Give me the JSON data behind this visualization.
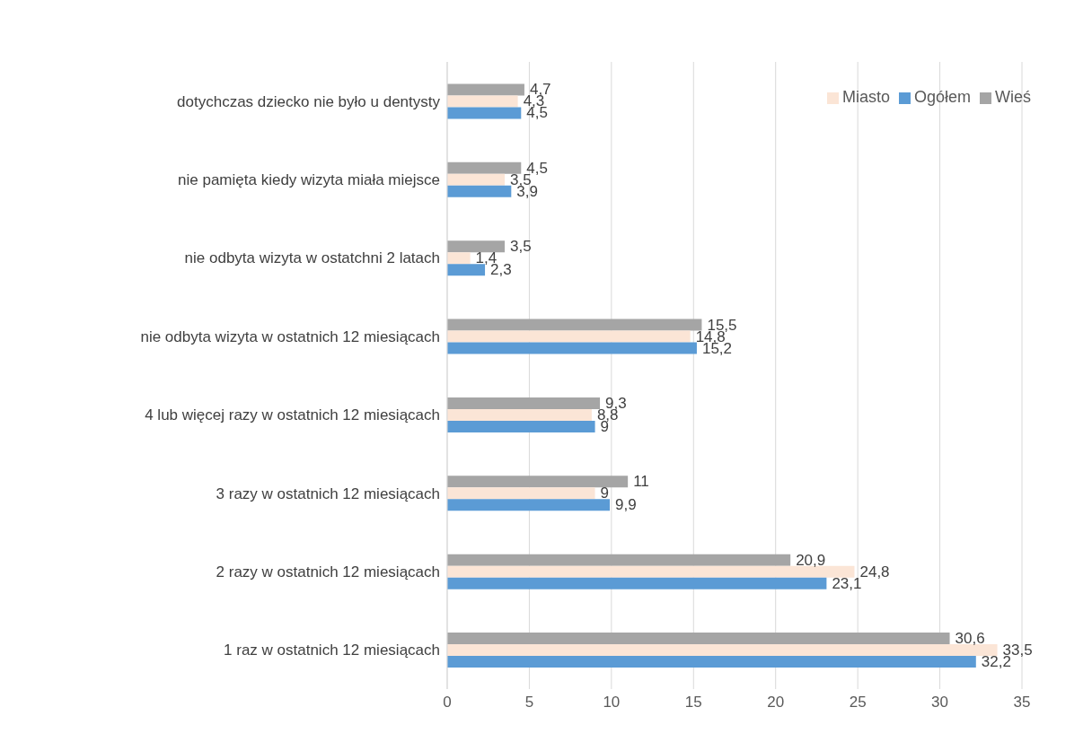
{
  "chart_data": {
    "type": "bar",
    "orientation": "horizontal",
    "categories": [
      "dotychczas dziecko nie było u dentysty",
      "nie pamięta kiedy wizyta miała miejsce",
      "nie odbyta wizyta w ostatchni 2 latach",
      "nie odbyta wizyta w ostatnich 12 miesiącach",
      "4 lub więcej razy w ostatnich 12 miesiącach",
      "3 razy w ostatnich 12 miesiącach",
      "2 razy w ostatnich 12 miesiącach",
      "1 raz w ostatnich 12 miesiącach"
    ],
    "series": [
      {
        "name": "Wieś",
        "color": "#a5a5a5",
        "values": [
          4.7,
          4.5,
          3.5,
          15.5,
          9.3,
          11,
          20.9,
          30.6
        ],
        "value_labels": [
          "4,7",
          "4,5",
          "3,5",
          "15,5",
          "9,3",
          "11",
          "20,9",
          "30,6"
        ]
      },
      {
        "name": "Miasto",
        "color": "#fbe5d6",
        "values": [
          4.3,
          3.5,
          1.4,
          14.8,
          8.8,
          9,
          24.8,
          33.5
        ],
        "value_labels": [
          "4,3",
          "3,5",
          "1,4",
          "14,8",
          "8,8",
          "9",
          "24,8",
          "33,5"
        ]
      },
      {
        "name": "Ogółem",
        "color": "#5b9bd5",
        "values": [
          4.5,
          3.9,
          2.3,
          15.2,
          9,
          9.9,
          23.1,
          32.2
        ],
        "value_labels": [
          "4,5",
          "3,9",
          "2,3",
          "15,2",
          "9",
          "9,9",
          "23,1",
          "32,2"
        ]
      }
    ],
    "xlim": [
      0,
      35
    ],
    "xticks": [
      0,
      5,
      10,
      15,
      20,
      25,
      30,
      35
    ],
    "grid": "x",
    "legend": "top right"
  }
}
